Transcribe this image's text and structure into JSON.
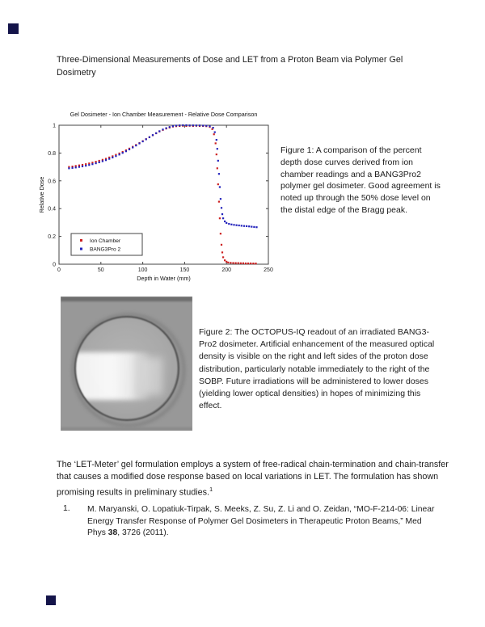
{
  "page": {
    "title": "Three-Dimensional Measurements of Dose and LET from a Proton Beam via Polymer Gel Dosimetry"
  },
  "figure1": {
    "caption": "Figure 1: A comparison of the percent depth dose curves derived from ion chamber readings and a BANG3Pro2 polymer gel dosimeter. Good agreement is noted up through the 50% dose level on the distal edge of the Bragg peak."
  },
  "figure2": {
    "caption": "Figure 2: The OCTOPUS-IQ readout of an irradiated BANG3-Pro2 dosimeter.  Artificial enhancement of the measured optical density is visible on the right and left sides of the proton dose distribution, particularly notable immediately to the right of the SOBP.   Future irradiations will be administered to lower doses (yielding lower optical densities) in hopes of minimizing this effect."
  },
  "body": {
    "paragraph": "The ‘LET-Meter’ gel formulation employs a system of free-radical chain-termination and chain-transfer that causes a modified dose response based on local variations in LET.  The formulation has shown promising results in preliminary studies.",
    "superscript": "1"
  },
  "reference": {
    "number": "1.",
    "text1": "M. Maryanski, O. Lopatiuk-Tirpak, S. Meeks, Z. Su, Z. Li and O. Zeidan, “MO-F-214-06: Linear Energy Transfer Response of Polymer Gel Dosimeters in Therapeutic Proton Beams,” Med Phys ",
    "bold": "38",
    "text2": ", 3726 (2011)."
  },
  "colors": {
    "ion_chamber": "#cc2020",
    "bang3pro2": "#2222bb",
    "marker_square": "#14144a",
    "fig2_background": "#989898"
  },
  "chart_data": {
    "type": "scatter",
    "title": "Gel Dosimeter - Ion Chamber Measurement - Relative Dose Comparison",
    "xlabel": "Depth in Water (mm)",
    "ylabel": "Relative Dose",
    "xlim": [
      0,
      250
    ],
    "ylim": [
      0,
      1
    ],
    "xticks": [
      0,
      50,
      100,
      150,
      200,
      250
    ],
    "yticks": [
      0,
      0.2,
      0.4,
      0.6,
      0.8,
      1
    ],
    "grid": false,
    "legend_position": "lower-left",
    "series": [
      {
        "name": "Ion Chamber",
        "color": "#cc2020",
        "points": [
          [
            12,
            0.7
          ],
          [
            16,
            0.703
          ],
          [
            20,
            0.707
          ],
          [
            24,
            0.711
          ],
          [
            28,
            0.715
          ],
          [
            32,
            0.72
          ],
          [
            36,
            0.725
          ],
          [
            40,
            0.731
          ],
          [
            44,
            0.737
          ],
          [
            48,
            0.744
          ],
          [
            52,
            0.751
          ],
          [
            56,
            0.759
          ],
          [
            60,
            0.768
          ],
          [
            64,
            0.777
          ],
          [
            68,
            0.787
          ],
          [
            72,
            0.797
          ],
          [
            76,
            0.808
          ],
          [
            80,
            0.82
          ],
          [
            84,
            0.832
          ],
          [
            88,
            0.845
          ],
          [
            92,
            0.858
          ],
          [
            96,
            0.872
          ],
          [
            100,
            0.886
          ],
          [
            104,
            0.9
          ],
          [
            108,
            0.914
          ],
          [
            112,
            0.928
          ],
          [
            116,
            0.942
          ],
          [
            120,
            0.955
          ],
          [
            124,
            0.966
          ],
          [
            128,
            0.976
          ],
          [
            132,
            0.984
          ],
          [
            136,
            0.99
          ],
          [
            140,
            0.993
          ],
          [
            144,
            0.995
          ],
          [
            148,
            0.996
          ],
          [
            152,
            0.995
          ],
          [
            156,
            0.996
          ],
          [
            160,
            0.994
          ],
          [
            164,
            0.996
          ],
          [
            168,
            0.994
          ],
          [
            172,
            0.995
          ],
          [
            176,
            0.993
          ],
          [
            180,
            0.988
          ],
          [
            183,
            0.972
          ],
          [
            185,
            0.935
          ],
          [
            187,
            0.87
          ],
          [
            188,
            0.79
          ],
          [
            189,
            0.69
          ],
          [
            190,
            0.575
          ],
          [
            191,
            0.45
          ],
          [
            192,
            0.33
          ],
          [
            193,
            0.22
          ],
          [
            194,
            0.14
          ],
          [
            195,
            0.085
          ],
          [
            196,
            0.05
          ],
          [
            198,
            0.028
          ],
          [
            200,
            0.018
          ],
          [
            202,
            0.012
          ],
          [
            205,
            0.01
          ],
          [
            208,
            0.009
          ],
          [
            211,
            0.008
          ],
          [
            214,
            0.008
          ],
          [
            217,
            0.007
          ],
          [
            220,
            0.007
          ],
          [
            223,
            0.006
          ],
          [
            226,
            0.006
          ],
          [
            229,
            0.006
          ],
          [
            232,
            0.005
          ],
          [
            235,
            0.005
          ]
        ]
      },
      {
        "name": "BANG3Pro 2",
        "color": "#2222bb",
        "points": [
          [
            12,
            0.69
          ],
          [
            16,
            0.693
          ],
          [
            20,
            0.696
          ],
          [
            24,
            0.7
          ],
          [
            28,
            0.704
          ],
          [
            32,
            0.709
          ],
          [
            36,
            0.714
          ],
          [
            40,
            0.72
          ],
          [
            44,
            0.726
          ],
          [
            48,
            0.733
          ],
          [
            52,
            0.741
          ],
          [
            56,
            0.749
          ],
          [
            60,
            0.758
          ],
          [
            64,
            0.768
          ],
          [
            68,
            0.778
          ],
          [
            72,
            0.789
          ],
          [
            76,
            0.801
          ],
          [
            80,
            0.813
          ],
          [
            84,
            0.826
          ],
          [
            88,
            0.84
          ],
          [
            92,
            0.854
          ],
          [
            96,
            0.869
          ],
          [
            100,
            0.884
          ],
          [
            104,
            0.899
          ],
          [
            108,
            0.914
          ],
          [
            112,
            0.929
          ],
          [
            116,
            0.943
          ],
          [
            120,
            0.957
          ],
          [
            124,
            0.969
          ],
          [
            128,
            0.979
          ],
          [
            132,
            0.987
          ],
          [
            136,
            0.993
          ],
          [
            140,
            0.997
          ],
          [
            144,
            0.999
          ],
          [
            148,
            1.0
          ],
          [
            152,
            1.0
          ],
          [
            156,
            0.999
          ],
          [
            160,
            0.999
          ],
          [
            164,
            0.998
          ],
          [
            168,
            0.998
          ],
          [
            172,
            0.997
          ],
          [
            176,
            0.996
          ],
          [
            180,
            0.993
          ],
          [
            184,
            0.982
          ],
          [
            186,
            0.95
          ],
          [
            188,
            0.895
          ],
          [
            189,
            0.83
          ],
          [
            190,
            0.745
          ],
          [
            191,
            0.65
          ],
          [
            192,
            0.555
          ],
          [
            193,
            0.47
          ],
          [
            194,
            0.405
          ],
          [
            195,
            0.36
          ],
          [
            196,
            0.33
          ],
          [
            198,
            0.308
          ],
          [
            200,
            0.297
          ],
          [
            203,
            0.29
          ],
          [
            206,
            0.286
          ],
          [
            209,
            0.283
          ],
          [
            212,
            0.281
          ],
          [
            215,
            0.279
          ],
          [
            218,
            0.277
          ],
          [
            221,
            0.275
          ],
          [
            224,
            0.274
          ],
          [
            227,
            0.272
          ],
          [
            230,
            0.27
          ],
          [
            233,
            0.268
          ],
          [
            236,
            0.266
          ]
        ]
      }
    ]
  }
}
